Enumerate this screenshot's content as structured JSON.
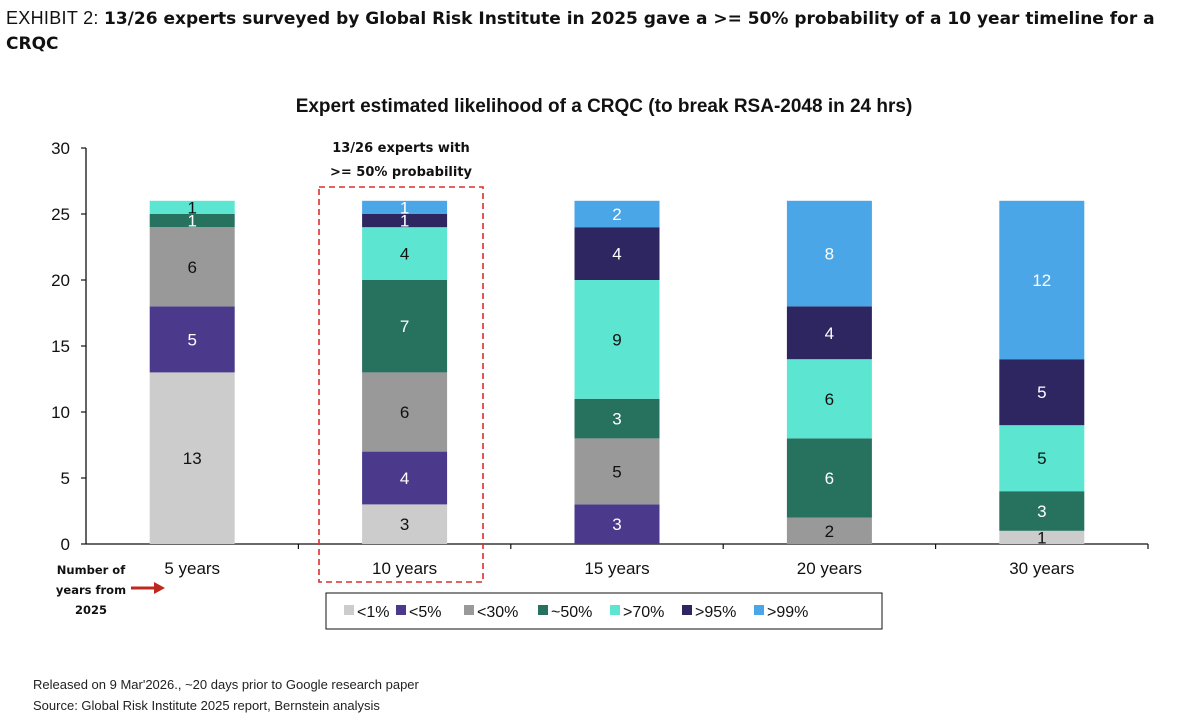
{
  "header": {
    "exhibit_label": "EXHIBIT 2: ",
    "headline": "13/26 experts surveyed by Global Risk Institute in 2025 gave a >= 50% probability of a 10 year timeline for a CRQC"
  },
  "annotation": {
    "line1": "13/26 experts with",
    "line2": ">= 50% probability"
  },
  "x_axis_note": {
    "line1": "Number of",
    "line2": "years from",
    "line3": "2025"
  },
  "colors": {
    "<1%": "#cccccc",
    "<5%": "#4b3a8c",
    "<30%": "#999999",
    "~50%": "#27715f",
    ">70%": "#5ce5d0",
    ">95%": "#2d2660",
    ">99%": "#4ba6e8",
    "highlight_box": "#d9302c",
    "arrow": "#c0281e"
  },
  "chart_data": {
    "type": "bar",
    "stacked": true,
    "title": "Expert estimated likelihood of a CRQC (to break RSA-2048 in 24 hrs)",
    "categories": [
      "5 years",
      "10 years",
      "15 years",
      "20 years",
      "30 years"
    ],
    "ylim": [
      0,
      30
    ],
    "yticks": [
      0,
      5,
      10,
      15,
      20,
      25,
      30
    ],
    "legend_position": "bottom",
    "grid": false,
    "series": [
      {
        "name": "<1%",
        "values": [
          13,
          3,
          0,
          0,
          1
        ]
      },
      {
        "name": "<5%",
        "values": [
          5,
          4,
          3,
          0,
          0
        ]
      },
      {
        "name": "<30%",
        "values": [
          6,
          6,
          5,
          2,
          0
        ]
      },
      {
        "name": "~50%",
        "values": [
          1,
          7,
          3,
          6,
          3
        ]
      },
      {
        "name": ">70%",
        "values": [
          1,
          4,
          9,
          6,
          5
        ]
      },
      {
        "name": ">95%",
        "values": [
          0,
          1,
          4,
          4,
          5
        ]
      },
      {
        "name": ">99%",
        "values": [
          0,
          1,
          2,
          8,
          12
        ]
      }
    ]
  },
  "footer": {
    "line1": "Released on 9 Mar'2026., ~20 days prior to Google research paper",
    "line2": "Source: Global Risk Institute 2025 report, Bernstein analysis"
  }
}
